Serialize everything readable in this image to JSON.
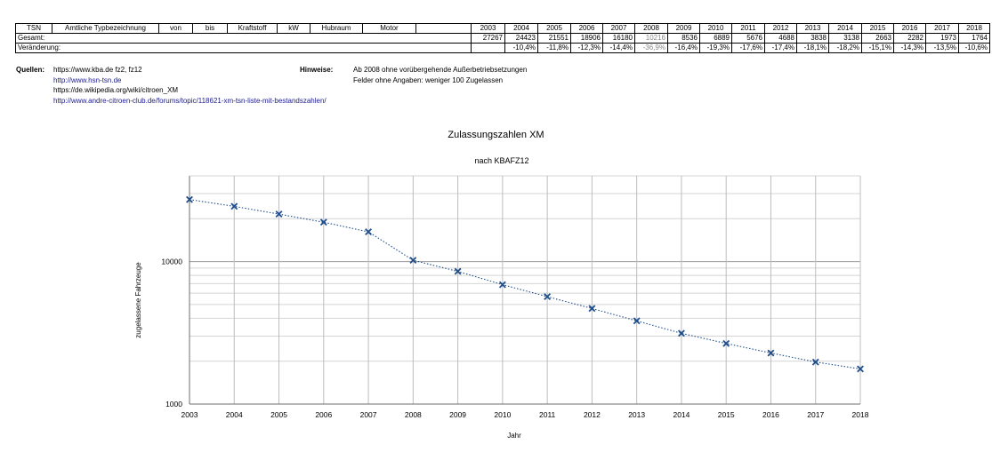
{
  "table": {
    "headers": [
      "TSN",
      "Amtliche Typbezeichnung",
      "von",
      "bis",
      "Kraftstoff",
      "kW",
      "Hubraum",
      "Motor",
      "",
      "2003",
      "2004",
      "2005",
      "2006",
      "2007",
      "2008",
      "2009",
      "2010",
      "2011",
      "2012",
      "2013",
      "2014",
      "2015",
      "2016",
      "2017",
      "2018"
    ],
    "row_gesamt": {
      "label": "Gesamt:",
      "values": [
        "27267",
        "24423",
        "21551",
        "18906",
        "16180",
        "10216",
        "8536",
        "6889",
        "5676",
        "4688",
        "3838",
        "3138",
        "2663",
        "2282",
        "1973",
        "1764"
      ]
    },
    "row_change": {
      "label": "Veränderung:",
      "values": [
        "",
        "-10,4%",
        "-11,8%",
        "-12,3%",
        "-14,4%",
        "-36,9%",
        "-16,4%",
        "-19,3%",
        "-17,6%",
        "-17,4%",
        "-18,1%",
        "-18,2%",
        "-15,1%",
        "-14,3%",
        "-13,5%",
        "-10,6%"
      ]
    },
    "highlight_color": "#888888"
  },
  "sources": {
    "label": "Quellen:",
    "lines": [
      "https://www.kba.de fz2, fz12",
      "http://www.hsn-tsn.de",
      "https://de.wikipedia.org/wiki/citroen_XM",
      "http://www.andre-citroen-club.de/forums/topic/118621-xm-tsn-liste-mit-bestandszahlen/"
    ],
    "link_color": "#1c1c8c"
  },
  "notes": {
    "label": "Hinweise:",
    "lines": [
      "Ab 2008 ohne vorübergehende Außerbetriebsetzungen",
      "Felder ohne Angaben: weniger 100 Zugelassen"
    ]
  },
  "chart_data": {
    "type": "line",
    "title": "Zulassungszahlen XM",
    "subtitle": "nach KBAFZ12",
    "xlabel": "Jahr",
    "ylabel": "zugelassene Fahrzeuge",
    "yscale": "log",
    "ylim": [
      1000,
      40000
    ],
    "ytick_labels": [
      "1000",
      "10000"
    ],
    "x": [
      2003,
      2004,
      2005,
      2006,
      2007,
      2008,
      2009,
      2010,
      2011,
      2012,
      2013,
      2014,
      2015,
      2016,
      2017,
      2018
    ],
    "series": [
      {
        "values": [
          27267,
          24423,
          21551,
          18906,
          16180,
          10216,
          8536,
          6889,
          5676,
          4688,
          3838,
          3138,
          2663,
          2282,
          1973,
          1764
        ]
      }
    ],
    "marker": "x",
    "line_style": "dotted",
    "color": "#1f4e8c",
    "grid": true
  }
}
